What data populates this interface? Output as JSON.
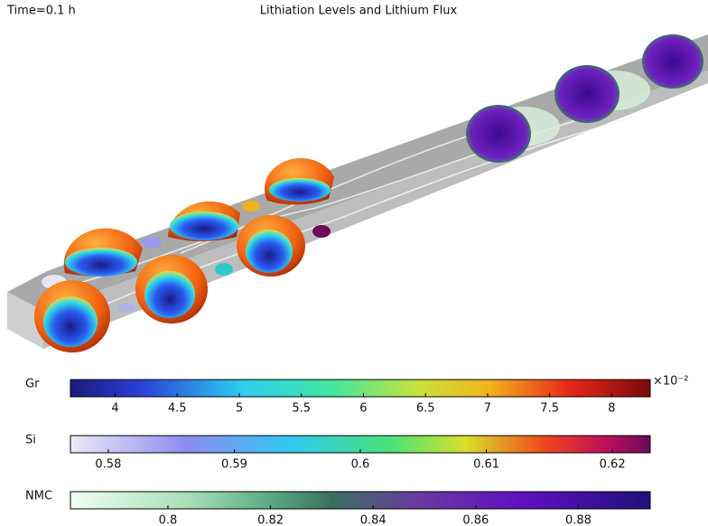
{
  "header": {
    "time": "Time=0.1 h",
    "title": "Lithiation Levels and Lithium Flux"
  },
  "colorbars": [
    {
      "label": "Gr",
      "range": [
        3.64,
        8.31
      ],
      "ticks": [
        4,
        4.5,
        5,
        5.5,
        6,
        6.5,
        7,
        7.5,
        8
      ],
      "multiplier": "×10⁻²"
    },
    {
      "label": "Si",
      "range": [
        0.577,
        0.623
      ],
      "ticks": [
        0.58,
        0.59,
        0.6,
        0.61,
        0.62
      ]
    },
    {
      "label": "NMC",
      "range": [
        0.781,
        0.894
      ],
      "ticks": [
        0.8,
        0.82,
        0.84,
        0.86,
        0.88
      ]
    }
  ]
}
